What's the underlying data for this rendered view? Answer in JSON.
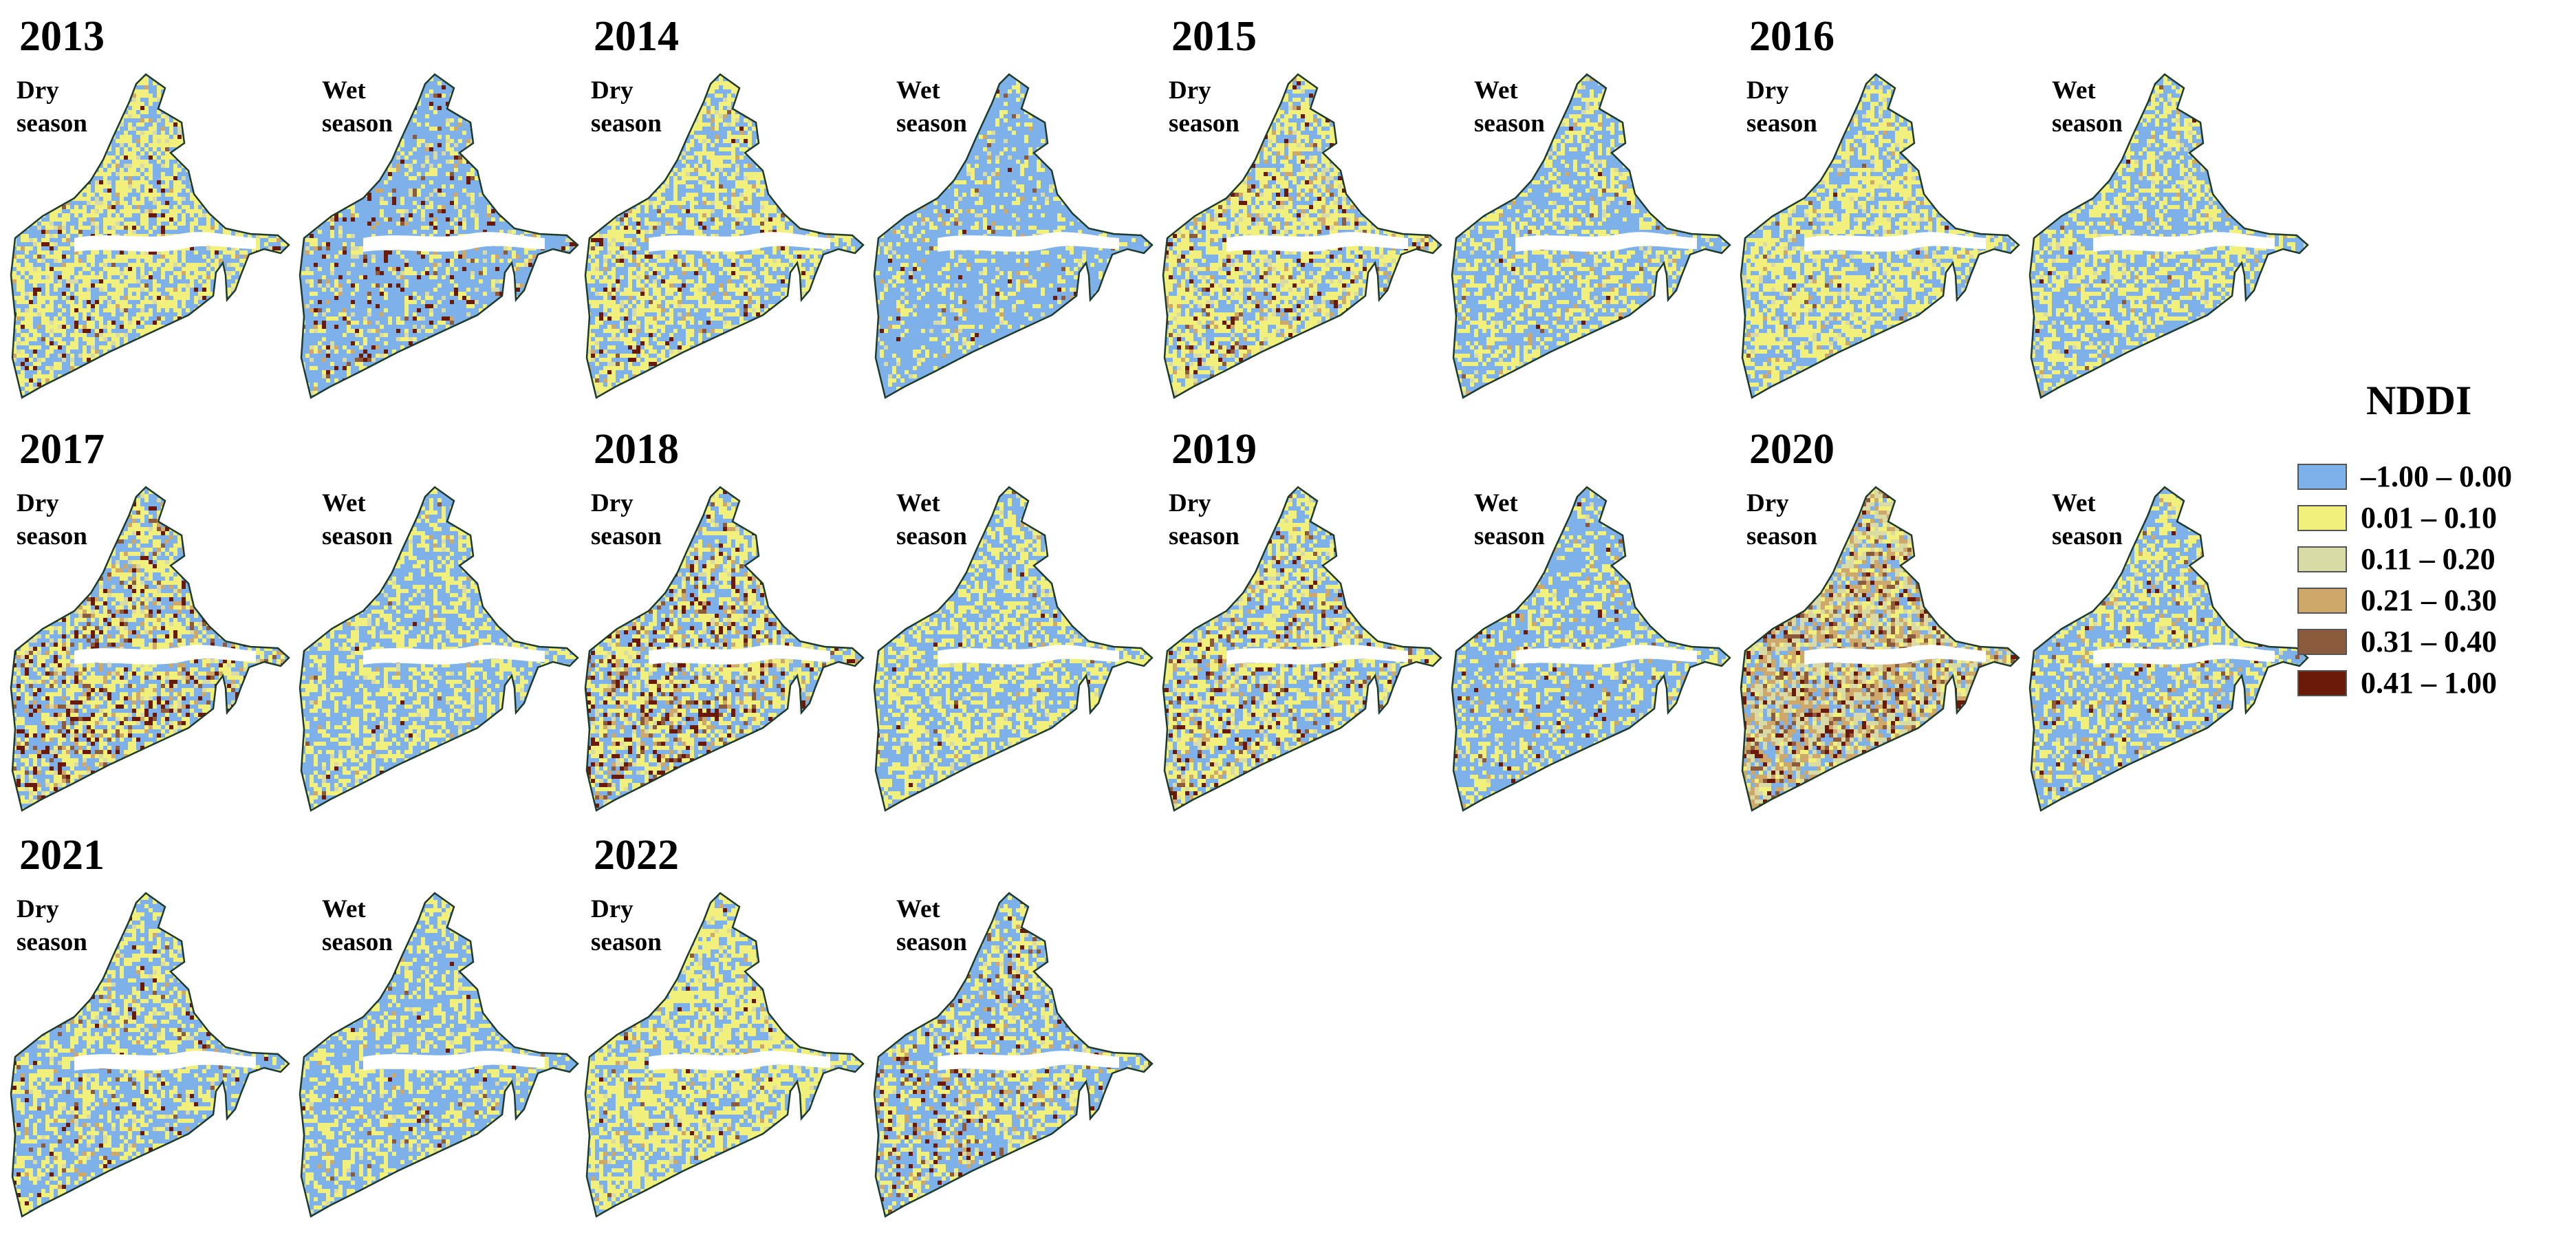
{
  "figure": {
    "panels": [
      {
        "year": "2013",
        "dry": {
          "label_line1": "Dry",
          "label_line2": "season"
        },
        "wet": {
          "label_line1": "Wet",
          "label_line2": "season"
        }
      },
      {
        "year": "2014",
        "dry": {
          "label_line1": "Dry",
          "label_line2": "season"
        },
        "wet": {
          "label_line1": "Wet",
          "label_line2": "season"
        }
      },
      {
        "year": "2015",
        "dry": {
          "label_line1": "Dry",
          "label_line2": "season"
        },
        "wet": {
          "label_line1": "Wet",
          "label_line2": "season"
        }
      },
      {
        "year": "2016",
        "dry": {
          "label_line1": "Dry",
          "label_line2": "season"
        },
        "wet": {
          "label_line1": "Wet",
          "label_line2": "season"
        }
      },
      {
        "year": "2017",
        "dry": {
          "label_line1": "Dry",
          "label_line2": "season"
        },
        "wet": {
          "label_line1": "Wet",
          "label_line2": "season"
        }
      },
      {
        "year": "2018",
        "dry": {
          "label_line1": "Dry",
          "label_line2": "season"
        },
        "wet": {
          "label_line1": "Wet",
          "label_line2": "season"
        }
      },
      {
        "year": "2019",
        "dry": {
          "label_line1": "Dry",
          "label_line2": "season"
        },
        "wet": {
          "label_line1": "Wet",
          "label_line2": "season"
        }
      },
      {
        "year": "2020",
        "dry": {
          "label_line1": "Dry",
          "label_line2": "season"
        },
        "wet": {
          "label_line1": "Wet",
          "label_line2": "season"
        }
      },
      {
        "year": "2021",
        "dry": {
          "label_line1": "Dry",
          "label_line2": "season"
        },
        "wet": {
          "label_line1": "Wet",
          "label_line2": "season"
        }
      },
      {
        "year": "2022",
        "dry": {
          "label_line1": "Dry",
          "label_line2": "season"
        },
        "wet": {
          "label_line1": "Wet",
          "label_line2": "season"
        }
      }
    ]
  },
  "legend": {
    "title": "NDDI",
    "classes": [
      {
        "label": "–1.00 – 0.00",
        "color": "#7eb1ea"
      },
      {
        "label": "0.01 – 0.10",
        "color": "#f2f07c"
      },
      {
        "label": "0.11 – 0.20",
        "color": "#d9dba6"
      },
      {
        "label": "0.21 – 0.30",
        "color": "#cda86a"
      },
      {
        "label": "0.31 – 0.40",
        "color": "#8c5a3c"
      },
      {
        "label": "0.41 – 1.00",
        "color": "#6b1a0a"
      }
    ]
  },
  "map_style": {
    "outline_color": "#1e3a2a",
    "river_color": "#ffffff"
  }
}
